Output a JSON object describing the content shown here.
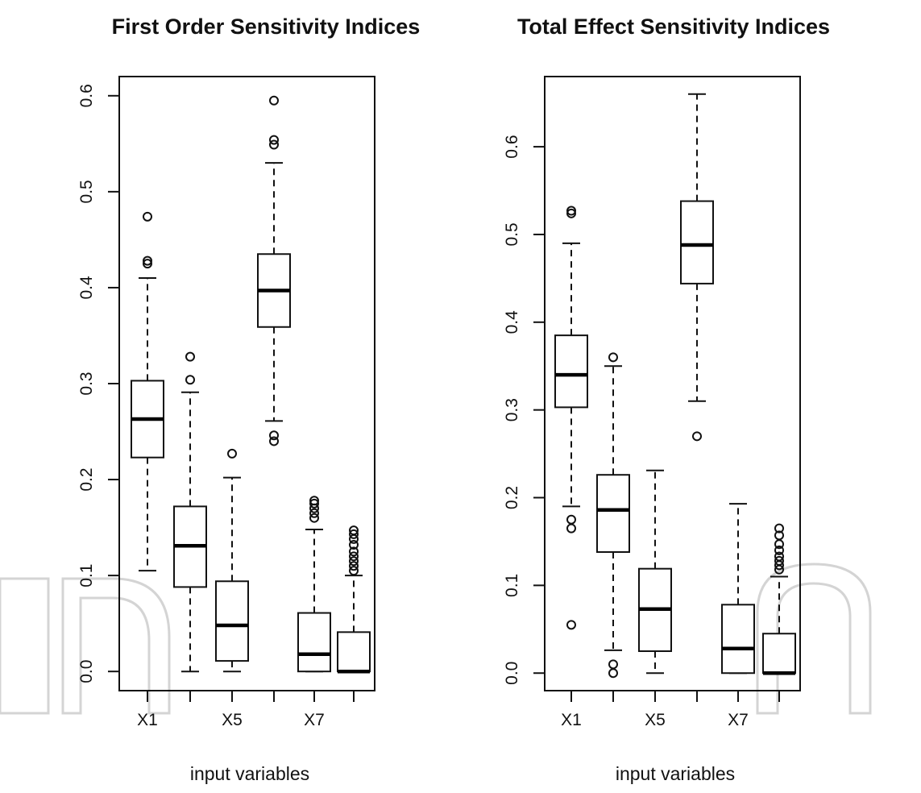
{
  "chart_data": [
    {
      "type": "boxplot",
      "title": "First Order Sensitivity Indices",
      "xlabel": "input variables",
      "ylabel": "",
      "ylim": [
        -0.02,
        0.62
      ],
      "yticks": [
        0.0,
        0.1,
        0.2,
        0.3,
        0.4,
        0.5,
        0.6
      ],
      "ytick_labels": [
        "0.0",
        "0.1",
        "0.2",
        "0.3",
        "0.4",
        "0.5",
        "0.6"
      ],
      "xtick_labels": [
        "X1",
        "",
        "X5",
        "",
        "X7",
        ""
      ],
      "boxes": [
        {
          "q1": 0.223,
          "median": 0.263,
          "q3": 0.303,
          "whisker_low": 0.105,
          "whisker_high": 0.41,
          "outliers": [
            0.425,
            0.428,
            0.474
          ]
        },
        {
          "q1": 0.088,
          "median": 0.131,
          "q3": 0.172,
          "whisker_low": 0.0,
          "whisker_high": 0.291,
          "outliers": [
            0.304,
            0.328
          ]
        },
        {
          "q1": 0.011,
          "median": 0.048,
          "q3": 0.094,
          "whisker_low": 0.0,
          "whisker_high": 0.202,
          "outliers": [
            0.227
          ]
        },
        {
          "q1": 0.359,
          "median": 0.397,
          "q3": 0.435,
          "whisker_low": 0.261,
          "whisker_high": 0.53,
          "outliers": [
            0.24,
            0.246,
            0.549,
            0.554,
            0.595
          ]
        },
        {
          "q1": 0.0,
          "median": 0.018,
          "q3": 0.061,
          "whisker_low": 0.0,
          "whisker_high": 0.148,
          "outliers": [
            0.16,
            0.165,
            0.17,
            0.175,
            0.178
          ]
        },
        {
          "q1": 0.0,
          "median": 0.0,
          "q3": 0.041,
          "whisker_low": 0.0,
          "whisker_high": 0.1,
          "outliers": [
            0.105,
            0.11,
            0.115,
            0.12,
            0.125,
            0.132,
            0.138,
            0.143,
            0.147
          ]
        }
      ]
    },
    {
      "type": "boxplot",
      "title": "Total Effect Sensitivity Indices",
      "xlabel": "input variables",
      "ylabel": "",
      "ylim": [
        -0.02,
        0.68
      ],
      "yticks": [
        0.0,
        0.1,
        0.2,
        0.3,
        0.4,
        0.5,
        0.6
      ],
      "ytick_labels": [
        "0.0",
        "0.1",
        "0.2",
        "0.3",
        "0.4",
        "0.5",
        "0.6"
      ],
      "xtick_labels": [
        "X1",
        "",
        "X5",
        "",
        "X7",
        ""
      ],
      "boxes": [
        {
          "q1": 0.303,
          "median": 0.34,
          "q3": 0.385,
          "whisker_low": 0.19,
          "whisker_high": 0.49,
          "outliers": [
            0.055,
            0.165,
            0.175,
            0.524,
            0.527
          ]
        },
        {
          "q1": 0.138,
          "median": 0.186,
          "q3": 0.226,
          "whisker_low": 0.026,
          "whisker_high": 0.35,
          "outliers": [
            0.0,
            0.01,
            0.36
          ]
        },
        {
          "q1": 0.025,
          "median": 0.073,
          "q3": 0.119,
          "whisker_low": 0.0,
          "whisker_high": 0.231,
          "outliers": []
        },
        {
          "q1": 0.444,
          "median": 0.488,
          "q3": 0.538,
          "whisker_low": 0.31,
          "whisker_high": 0.66,
          "outliers": [
            0.27
          ]
        },
        {
          "q1": 0.0,
          "median": 0.028,
          "q3": 0.078,
          "whisker_low": 0.0,
          "whisker_high": 0.193,
          "outliers": []
        },
        {
          "q1": 0.0,
          "median": 0.0,
          "q3": 0.045,
          "whisker_low": 0.0,
          "whisker_high": 0.11,
          "outliers": [
            0.118,
            0.123,
            0.128,
            0.133,
            0.14,
            0.147,
            0.157,
            0.165
          ]
        }
      ]
    }
  ]
}
